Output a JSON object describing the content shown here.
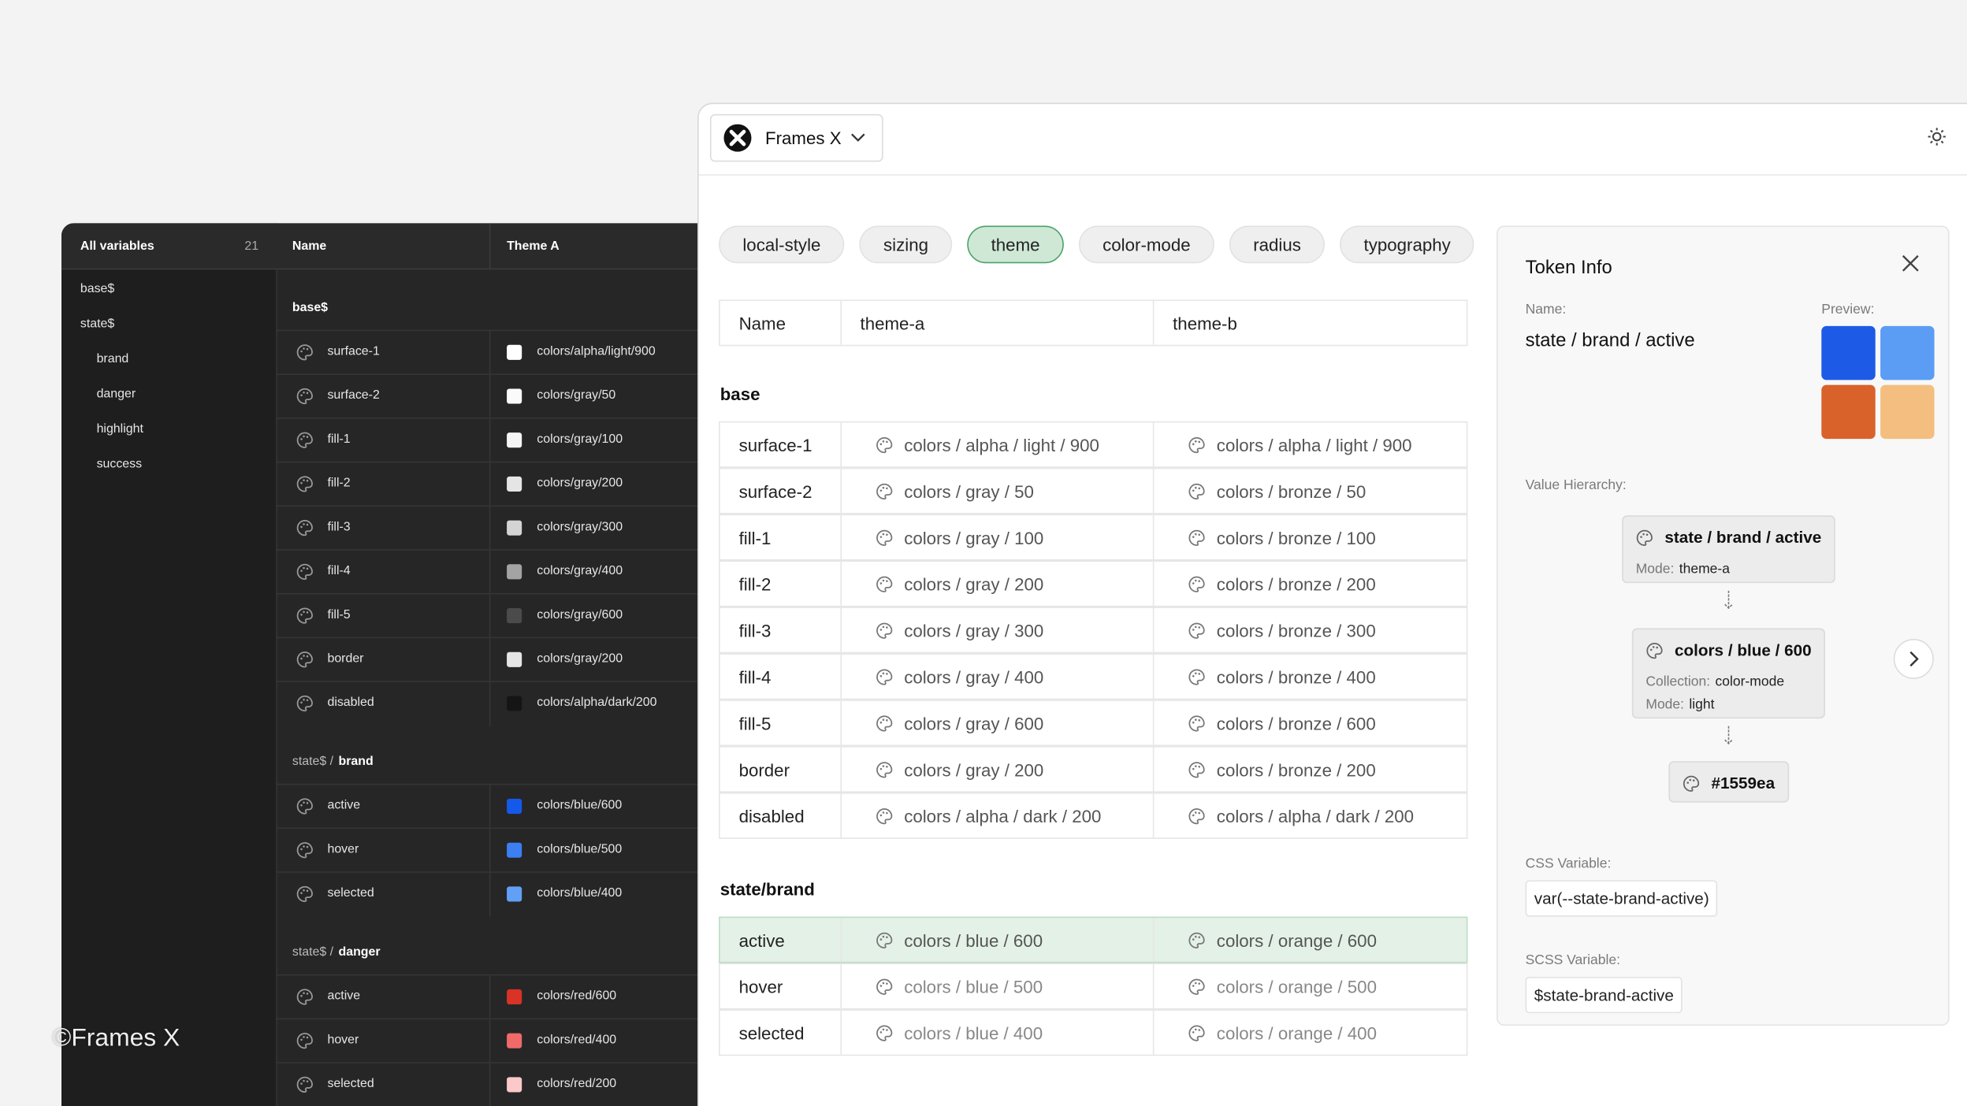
{
  "watermark": "©Frames X",
  "variables_panel": {
    "sidebar": {
      "title": "All variables",
      "count": 21,
      "items": [
        {
          "label": "base$"
        },
        {
          "label": "state$",
          "children": [
            "brand",
            "danger",
            "highlight",
            "success"
          ]
        }
      ]
    },
    "columns": [
      "Name",
      "Theme A"
    ],
    "groups": [
      {
        "title": "base$",
        "rows": [
          {
            "name": "surface-1",
            "value": "colors/alpha/light/900",
            "swatch": "#ffffff"
          },
          {
            "name": "surface-2",
            "value": "colors/gray/50",
            "swatch": "#fafafa"
          },
          {
            "name": "fill-1",
            "value": "colors/gray/100",
            "swatch": "#f5f5f5"
          },
          {
            "name": "fill-2",
            "value": "colors/gray/200",
            "swatch": "#e5e5e5"
          },
          {
            "name": "fill-3",
            "value": "colors/gray/300",
            "swatch": "#d4d4d4"
          },
          {
            "name": "fill-4",
            "value": "colors/gray/400",
            "swatch": "#a3a3a3"
          },
          {
            "name": "fill-5",
            "value": "colors/gray/600",
            "swatch": "#4b4b4b"
          },
          {
            "name": "border",
            "value": "colors/gray/200",
            "swatch": "#e5e5e5"
          },
          {
            "name": "disabled",
            "value": "colors/alpha/dark/200",
            "swatch": "#151515"
          }
        ]
      },
      {
        "parent": "state$ /",
        "title": "brand",
        "rows": [
          {
            "name": "active",
            "value": "colors/blue/600",
            "swatch": "#1559ea"
          },
          {
            "name": "hover",
            "value": "colors/blue/500",
            "swatch": "#3b7ff3"
          },
          {
            "name": "selected",
            "value": "colors/blue/400",
            "swatch": "#62a0f6"
          }
        ]
      },
      {
        "parent": "state$ /",
        "title": "danger",
        "rows": [
          {
            "name": "active",
            "value": "colors/red/600",
            "swatch": "#d93226"
          },
          {
            "name": "hover",
            "value": "colors/red/400",
            "swatch": "#f06a6a"
          },
          {
            "name": "selected",
            "value": "colors/red/200",
            "swatch": "#fbc9c9"
          }
        ]
      }
    ]
  },
  "app": {
    "title": "Frames X"
  },
  "tabs": {
    "items": [
      "local-style",
      "sizing",
      "theme",
      "color-mode",
      "radius",
      "typography"
    ],
    "active": 2
  },
  "table": {
    "header": [
      "Name",
      "theme-a",
      "theme-b"
    ],
    "sections": [
      {
        "title": "base",
        "rows": [
          [
            "surface-1",
            "colors / alpha / light / 900",
            "colors / alpha / light / 900"
          ],
          [
            "surface-2",
            "colors / gray / 50",
            "colors / bronze / 50"
          ],
          [
            "fill-1",
            "colors / gray / 100",
            "colors / bronze / 100"
          ],
          [
            "fill-2",
            "colors / gray / 200",
            "colors / bronze / 200"
          ],
          [
            "fill-3",
            "colors / gray / 300",
            "colors / bronze / 300"
          ],
          [
            "fill-4",
            "colors / gray / 400",
            "colors / bronze / 400"
          ],
          [
            "fill-5",
            "colors / gray / 600",
            "colors / bronze / 600"
          ],
          [
            "border",
            "colors / gray / 200",
            "colors / bronze / 200"
          ],
          [
            "disabled",
            "colors / alpha / dark / 200",
            "colors / alpha / dark / 200"
          ]
        ]
      },
      {
        "title": "state/brand",
        "highlighted_row": 0,
        "rows": [
          [
            "active",
            "colors / blue / 600",
            "colors / orange / 600"
          ],
          [
            "hover",
            "colors / blue / 500",
            "colors / orange / 500"
          ],
          [
            "selected",
            "colors / blue / 400",
            "colors / orange / 400"
          ]
        ]
      }
    ]
  },
  "token_info": {
    "title": "Token Info",
    "name_label": "Name:",
    "name": "state / brand / active",
    "preview_label": "Preview:",
    "preview_colors": [
      "#1d5be6",
      "#5b9cf5",
      "#d9622b",
      "#f3be7f"
    ],
    "hierarchy_label": "Value Hierarchy:",
    "hierarchy": [
      {
        "title": "state / brand / active",
        "details": [
          {
            "label": "Mode:",
            "value": "theme-a"
          }
        ]
      },
      {
        "title": "colors / blue / 600",
        "details": [
          {
            "label": "Collection:",
            "value": "color-mode"
          },
          {
            "label": "Mode:",
            "value": "light"
          }
        ]
      },
      {
        "title": "#1559ea"
      }
    ],
    "css_label": "CSS Variable:",
    "css_value": "var(--state-brand-active)",
    "scss_label": "SCSS Variable:",
    "scss_value": "$state-brand-active"
  }
}
